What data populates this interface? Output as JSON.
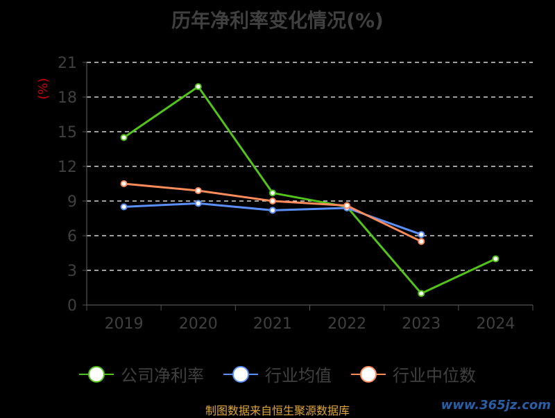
{
  "chart_data": {
    "type": "line",
    "title": "历年净利率变化情况(%)",
    "ylabel": "(%)",
    "categories": [
      "2019",
      "2020",
      "2021",
      "2022",
      "2023",
      "2024"
    ],
    "ylim": [
      0,
      21
    ],
    "yticks": [
      0,
      3,
      6,
      9,
      12,
      15,
      18,
      21
    ],
    "grid": true,
    "legend_position": "bottom",
    "series": [
      {
        "name": "公司净利率",
        "color": "#52c41a",
        "values": [
          14.5,
          18.9,
          9.7,
          8.5,
          1.0,
          4.0
        ]
      },
      {
        "name": "行业均值",
        "color": "#5b8ff9",
        "values": [
          8.5,
          8.8,
          8.2,
          8.4,
          6.1,
          null
        ]
      },
      {
        "name": "行业中位数",
        "color": "#ff8c5a",
        "values": [
          10.5,
          9.9,
          9.0,
          8.6,
          5.5,
          null
        ]
      }
    ]
  },
  "footer": {
    "source": "制图数据来自恒生聚源数据库",
    "watermark": "www.365jz.com"
  }
}
